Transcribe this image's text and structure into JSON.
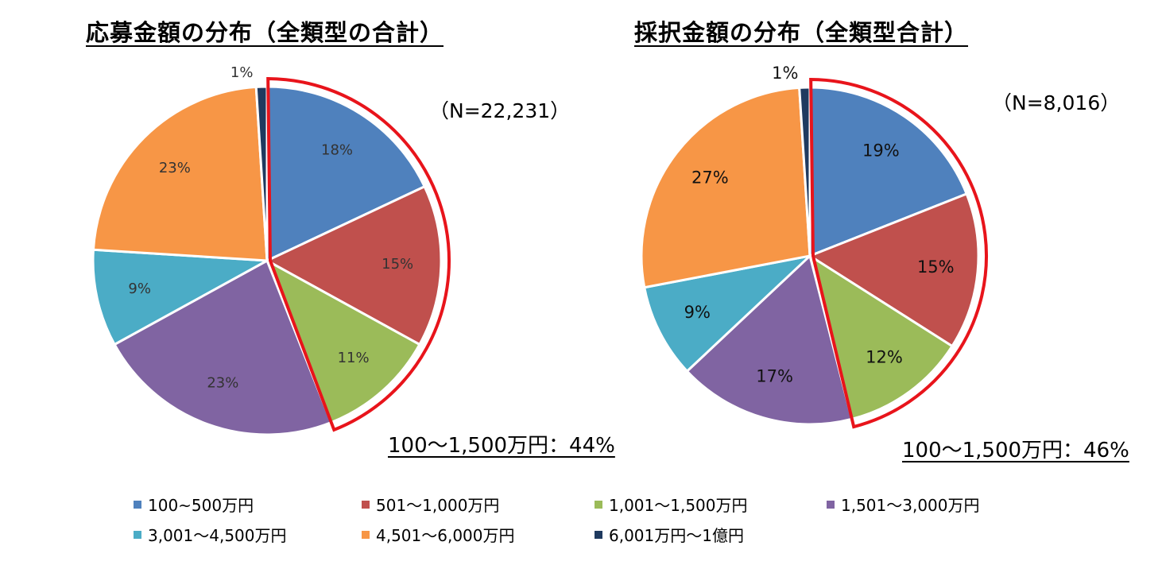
{
  "chart_data": [
    {
      "type": "pie",
      "title": "応募金額の分布（全類型の合計）",
      "n_label": "（N=22,231）",
      "callout": "100～1,500万円：44%",
      "series": [
        {
          "name": "100~500万円",
          "value": 18,
          "label": "18%"
        },
        {
          "name": "501～1,000万円",
          "value": 15,
          "label": "15%"
        },
        {
          "name": "1,001～1,500万円",
          "value": 11,
          "label": "11%"
        },
        {
          "name": "1,501～3,000万円",
          "value": 23,
          "label": "23%"
        },
        {
          "name": "3,001～4,500万円",
          "value": 9,
          "label": "9%"
        },
        {
          "name": "4,501～6,000万円",
          "value": 23,
          "label": "23%"
        },
        {
          "name": "6,001万円～1億円",
          "value": 1,
          "label": "1%"
        }
      ]
    },
    {
      "type": "pie",
      "title": "採択金額の分布（全類型合計）",
      "n_label": "（N=8,016）",
      "callout": "100～1,500万円：46%",
      "series": [
        {
          "name": "100~500万円",
          "value": 19,
          "label": "19%"
        },
        {
          "name": "501～1,000万円",
          "value": 15,
          "label": "15%"
        },
        {
          "name": "1,001～1,500万円",
          "value": 12,
          "label": "12%"
        },
        {
          "name": "1,501～3,000万円",
          "value": 17,
          "label": "17%"
        },
        {
          "name": "3,001～4,500万円",
          "value": 9,
          "label": "9%"
        },
        {
          "name": "4,501～6,000万円",
          "value": 27,
          "label": "27%"
        },
        {
          "name": "6,001万円～1億円",
          "value": 1,
          "label": "1%"
        }
      ]
    }
  ],
  "legend": [
    {
      "label": "100~500万円",
      "color": "#4F81BD"
    },
    {
      "label": "501～1,000万円",
      "color": "#C0504D"
    },
    {
      "label": "1,001～1,500万円",
      "color": "#9BBB59"
    },
    {
      "label": "1,501～3,000万円",
      "color": "#8064A2"
    },
    {
      "label": "3,001～4,500万円",
      "color": "#4BACC6"
    },
    {
      "label": "4,501～6,000万円",
      "color": "#F79646"
    },
    {
      "label": "6,001万円～1億円",
      "color": "#1F3A5F"
    }
  ],
  "highlight_color": "#E8141B"
}
